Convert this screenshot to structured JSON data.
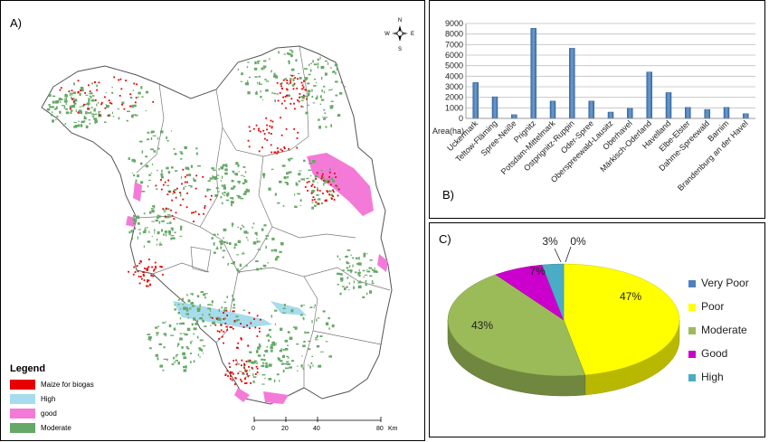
{
  "panel_a": {
    "label": "A)",
    "compass": {
      "n": "N",
      "e": "E",
      "s": "S",
      "w": "W"
    },
    "legend": {
      "title": "Legend",
      "items": [
        {
          "label": "Maize  for biogas",
          "color": "#e60000"
        },
        {
          "label": "High",
          "color": "#a6dcec"
        },
        {
          "label": "good",
          "color": "#f47ad8"
        },
        {
          "label": "Moderate",
          "color": "#66a867"
        }
      ]
    },
    "scalebar": {
      "ticks": [
        "0",
        "20",
        "40",
        "80"
      ],
      "unit": "Km"
    }
  },
  "panel_b": {
    "label": "B)"
  },
  "panel_c": {
    "label": "C)"
  },
  "chart_data": [
    {
      "type": "bar",
      "ylabel": "Area(ha)",
      "ylim": [
        0,
        9000
      ],
      "yticks": [
        0,
        1000,
        2000,
        3000,
        4000,
        5000,
        6000,
        7000,
        8000,
        9000
      ],
      "grid": true,
      "color": "#4f81bd",
      "categories": [
        "Uckermark",
        "Teltow-Fläming",
        "Spree-Neiße",
        "Prignitz",
        "Potsdam-Mittelmark",
        "Ostprignitz-Ruppin",
        "Oder-Spree",
        "Oberspreewald-Lausitz",
        "Oberhavel",
        "Märkisch-Oderland",
        "Havelland",
        "Elbe-Elster",
        "Dahme-Spreewald",
        "Barnim",
        "Brandenburg an der Havel"
      ],
      "values": [
        3400,
        2050,
        350,
        8550,
        1650,
        6650,
        1650,
        600,
        950,
        4400,
        2450,
        1050,
        850,
        1050,
        450
      ]
    },
    {
      "type": "pie",
      "style": "3d",
      "legend": "right",
      "slices": [
        {
          "label": "Very Poor",
          "value": 0,
          "display": "0%",
          "color": "#4f81bd"
        },
        {
          "label": "Poor",
          "value": 47,
          "display": "47%",
          "color": "#ffff00"
        },
        {
          "label": "Moderate",
          "value": 43,
          "display": "43%",
          "color": "#9bbb59"
        },
        {
          "label": "Good",
          "value": 7,
          "display": "7%",
          "color": "#cc00cc"
        },
        {
          "label": "High",
          "value": 3,
          "display": "3%",
          "color": "#4bacc6"
        }
      ]
    }
  ]
}
